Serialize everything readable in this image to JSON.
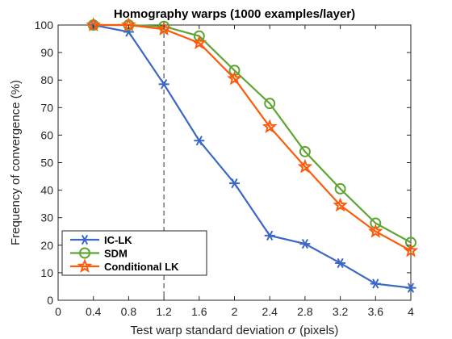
{
  "chart_data": {
    "type": "line",
    "title": "Homography warps (1000 examples/layer)",
    "xlabel_prefix": "Test warp standard deviation ",
    "xlabel_symbol": "σ",
    "xlabel_suffix": " (pixels)",
    "ylabel": "Frequency of convergence (%)",
    "xlim": [
      0,
      4
    ],
    "ylim": [
      0,
      100
    ],
    "xticks": [
      0,
      0.4,
      0.8,
      1.2,
      1.6,
      2,
      2.4,
      2.8,
      3.2,
      3.6,
      4
    ],
    "xtick_labels": [
      "0",
      "0.4",
      "0.8",
      "1.2",
      "1.6",
      "2",
      "2.4",
      "2.8",
      "3.2",
      "3.6",
      "4"
    ],
    "yticks": [
      0,
      10,
      20,
      30,
      40,
      50,
      60,
      70,
      80,
      90,
      100
    ],
    "ytick_labels": [
      "0",
      "10",
      "20",
      "30",
      "40",
      "50",
      "60",
      "70",
      "80",
      "90",
      "100"
    ],
    "reference_line_x": 1.2,
    "x": [
      0.4,
      0.8,
      1.2,
      1.6,
      2,
      2.4,
      2.8,
      3.2,
      3.6,
      4
    ],
    "series": [
      {
        "name": "IC-LK",
        "color": "#3b68c7",
        "marker": "asterisk",
        "values": [
          100,
          97.5,
          78.5,
          58,
          42.5,
          23.5,
          20.5,
          13.5,
          6,
          4.5
        ]
      },
      {
        "name": "SDM",
        "color": "#5ea533",
        "marker": "circle",
        "values": [
          100,
          100,
          99.5,
          96,
          83.5,
          71.5,
          54,
          40.5,
          28,
          21
        ]
      },
      {
        "name": "Conditional LK",
        "color": "#ff5a0a",
        "marker": "star",
        "values": [
          100,
          100,
          98.5,
          93.5,
          80.5,
          63,
          48.5,
          34.5,
          25,
          18
        ]
      }
    ],
    "legend_position": "bottom-left",
    "grid": false
  }
}
